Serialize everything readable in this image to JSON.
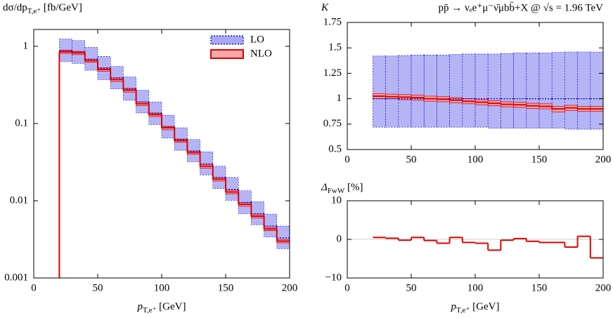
{
  "chart_data": [
    {
      "type": "histogram",
      "log_y": true,
      "ylabel": "dσ/dp",
      "ylabel_sub": "T,e⁺",
      "ylabel_unit": "[fb/GeV]",
      "xlabel": "p",
      "xlabel_sub": "T,e⁺",
      "xlabel_unit": "[GeV]",
      "bins": [
        20,
        30,
        40,
        50,
        60,
        70,
        80,
        90,
        100,
        110,
        120,
        130,
        140,
        150,
        160,
        170,
        180,
        190,
        200
      ],
      "xlim": [
        0,
        200
      ],
      "xticks": [
        0,
        50,
        100,
        150,
        200
      ],
      "ylim": [
        0.001,
        1.65
      ],
      "yticks": [
        1,
        0.1,
        0.01,
        0.001
      ],
      "legend": "upper right",
      "series": [
        {
          "name": "LO",
          "color": "#0000c0",
          "band_color": "#a8a8f4",
          "linestyle": "dotted",
          "values": [
            0.87,
            0.84,
            0.68,
            0.52,
            0.39,
            0.28,
            0.19,
            0.135,
            0.09,
            0.062,
            0.044,
            0.03,
            0.02,
            0.014,
            0.0095,
            0.0068,
            0.0047,
            0.0033
          ],
          "band_low": [
            0.63,
            0.6,
            0.49,
            0.37,
            0.28,
            0.2,
            0.137,
            0.097,
            0.065,
            0.045,
            0.032,
            0.0216,
            0.0144,
            0.0101,
            0.0068,
            0.0049,
            0.0034,
            0.0024
          ],
          "band_high": [
            1.24,
            1.19,
            0.97,
            0.74,
            0.55,
            0.4,
            0.27,
            0.19,
            0.128,
            0.088,
            0.062,
            0.043,
            0.028,
            0.02,
            0.0135,
            0.0097,
            0.0067,
            0.0047
          ]
        },
        {
          "name": "NLO",
          "color": "#e00000",
          "band_color": "#f8a8a8",
          "linestyle": "solid",
          "values": [
            0.85,
            0.82,
            0.65,
            0.5,
            0.37,
            0.27,
            0.18,
            0.13,
            0.088,
            0.06,
            0.042,
            0.028,
            0.019,
            0.013,
            0.009,
            0.0063,
            0.0043,
            0.003
          ],
          "band_low": [
            0.81,
            0.78,
            0.62,
            0.475,
            0.35,
            0.255,
            0.17,
            0.123,
            0.083,
            0.057,
            0.04,
            0.0265,
            0.018,
            0.0123,
            0.0085,
            0.006,
            0.0041,
            0.00285
          ],
          "band_high": [
            0.89,
            0.86,
            0.68,
            0.525,
            0.39,
            0.285,
            0.19,
            0.137,
            0.092,
            0.063,
            0.044,
            0.0295,
            0.02,
            0.0137,
            0.0095,
            0.0066,
            0.0045,
            0.00315
          ]
        }
      ]
    },
    {
      "type": "histogram",
      "log_y": false,
      "ylabel": "K",
      "title": "pp̄ → νₑe⁺μ⁻ν̄μbb̄+X @ √s = 1.96 TeV",
      "bins": [
        20,
        30,
        40,
        50,
        60,
        70,
        80,
        90,
        100,
        110,
        120,
        130,
        140,
        150,
        160,
        170,
        180,
        190,
        200
      ],
      "xlim": [
        0,
        200
      ],
      "xticks": [
        0,
        50,
        100,
        150,
        200
      ],
      "ylim": [
        0.5,
        1.75
      ],
      "yticks": [
        0.5,
        0.75,
        1,
        1.25,
        1.5,
        1.75
      ],
      "series": [
        {
          "color": "#0000c0",
          "band_color": "#a8a8f4",
          "linestyle": "dotted",
          "values": [
            1,
            1,
            1,
            1,
            1,
            1,
            1,
            1,
            1,
            1,
            1,
            1,
            1,
            1,
            1,
            1,
            1,
            1
          ],
          "band_low": [
            0.72,
            0.72,
            0.72,
            0.72,
            0.72,
            0.72,
            0.72,
            0.72,
            0.72,
            0.71,
            0.71,
            0.71,
            0.71,
            0.71,
            0.71,
            0.7,
            0.7,
            0.7
          ],
          "band_high": [
            1.42,
            1.42,
            1.425,
            1.43,
            1.43,
            1.43,
            1.435,
            1.44,
            1.44,
            1.44,
            1.445,
            1.45,
            1.45,
            1.45,
            1.455,
            1.46,
            1.46,
            1.46
          ]
        },
        {
          "color": "#e00000",
          "band_color": "#f8a8a8",
          "linestyle": "solid",
          "values": [
            1.025,
            1.02,
            1.015,
            1.01,
            1.0,
            0.995,
            0.985,
            0.975,
            0.965,
            0.955,
            0.945,
            0.94,
            0.93,
            0.925,
            0.9,
            0.91,
            0.9,
            0.9
          ],
          "band_low": [
            1.0,
            1.0,
            0.99,
            0.985,
            0.975,
            0.97,
            0.96,
            0.95,
            0.94,
            0.93,
            0.92,
            0.915,
            0.905,
            0.9,
            0.87,
            0.885,
            0.875,
            0.875
          ],
          "band_high": [
            1.05,
            1.045,
            1.04,
            1.035,
            1.025,
            1.02,
            1.01,
            1.0,
            0.99,
            0.98,
            0.97,
            0.965,
            0.955,
            0.95,
            0.925,
            0.935,
            0.925,
            0.925
          ]
        }
      ]
    },
    {
      "type": "histogram",
      "log_y": false,
      "ylabel": "Δ",
      "ylabel_sub": "FwW",
      "ylabel_unit": "[%]",
      "xlabel": "p",
      "xlabel_sub": "T,e⁺",
      "xlabel_unit": "[GeV]",
      "bins": [
        20,
        30,
        40,
        50,
        60,
        70,
        80,
        90,
        100,
        110,
        120,
        130,
        140,
        150,
        160,
        170,
        180,
        190,
        200
      ],
      "xlim": [
        0,
        200
      ],
      "xticks": [
        0,
        50,
        100,
        150,
        200
      ],
      "ylim": [
        -10,
        10
      ],
      "yticks": [
        {
          "value": -10,
          "label": "−10"
        },
        0,
        10
      ],
      "series": [
        {
          "color": "#e00000",
          "linestyle": "solid",
          "values": [
            0.5,
            0.3,
            -0.2,
            0.5,
            -0.3,
            -1,
            0.5,
            -0.8,
            -1,
            -2.8,
            -0.2,
            0.2,
            -0.5,
            -0.8,
            -0.8,
            -2,
            0.8,
            -4.8
          ]
        }
      ]
    }
  ]
}
